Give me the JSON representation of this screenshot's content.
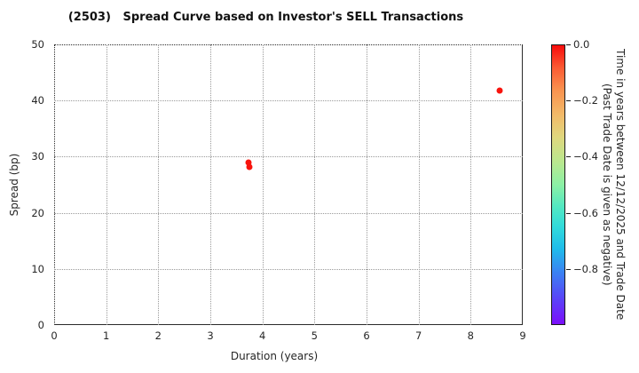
{
  "title": "(2503)   Spread Curve based on Investor's SELL Transactions",
  "chart_data": {
    "type": "scatter",
    "title": "(2503)   Spread Curve based on Investor's SELL Transactions",
    "xlabel": "Duration (years)",
    "ylabel": "Spread (bp)",
    "xlim": [
      0,
      9
    ],
    "ylim": [
      0,
      50
    ],
    "xticks": [
      0,
      1,
      2,
      3,
      4,
      5,
      6,
      7,
      8,
      9
    ],
    "yticks": [
      0,
      10,
      20,
      30,
      40,
      50
    ],
    "grid": true,
    "points": [
      {
        "duration_years": 3.73,
        "spread_bp": 29.0,
        "time_value": 0.0
      },
      {
        "duration_years": 3.75,
        "spread_bp": 28.2,
        "time_value": 0.0
      },
      {
        "duration_years": 8.56,
        "spread_bp": 41.8,
        "time_value": 0.0
      }
    ],
    "marker_color": "#f8140d",
    "colorbar": {
      "colormap": "rainbow",
      "position": "right",
      "max": 0.0,
      "min": -1.0,
      "ticks": [
        {
          "value": 0.0,
          "label": "0.0"
        },
        {
          "value": -0.2,
          "label": "−0.2"
        },
        {
          "value": -0.4,
          "label": "−0.4"
        },
        {
          "value": -0.6,
          "label": "−0.6"
        },
        {
          "value": -0.8,
          "label": "−0.8"
        }
      ],
      "label_line1": "Time in years between 12/12/2025 and Trade Date",
      "label_line2": "(Past Trade Date is given as negative)",
      "gradient_stops": [
        {
          "pos": 0.0,
          "color": "#f80c0c"
        },
        {
          "pos": 0.08,
          "color": "#fb5a33"
        },
        {
          "pos": 0.16,
          "color": "#f9924f"
        },
        {
          "pos": 0.25,
          "color": "#f2ba69"
        },
        {
          "pos": 0.33,
          "color": "#dfd77e"
        },
        {
          "pos": 0.42,
          "color": "#b9e88f"
        },
        {
          "pos": 0.5,
          "color": "#8cf0a5"
        },
        {
          "pos": 0.58,
          "color": "#52e8c2"
        },
        {
          "pos": 0.65,
          "color": "#32dbdb"
        },
        {
          "pos": 0.73,
          "color": "#1fbcea"
        },
        {
          "pos": 0.82,
          "color": "#3c7ef3"
        },
        {
          "pos": 0.91,
          "color": "#5a43f8"
        },
        {
          "pos": 1.0,
          "color": "#7b0ffb"
        }
      ]
    }
  }
}
